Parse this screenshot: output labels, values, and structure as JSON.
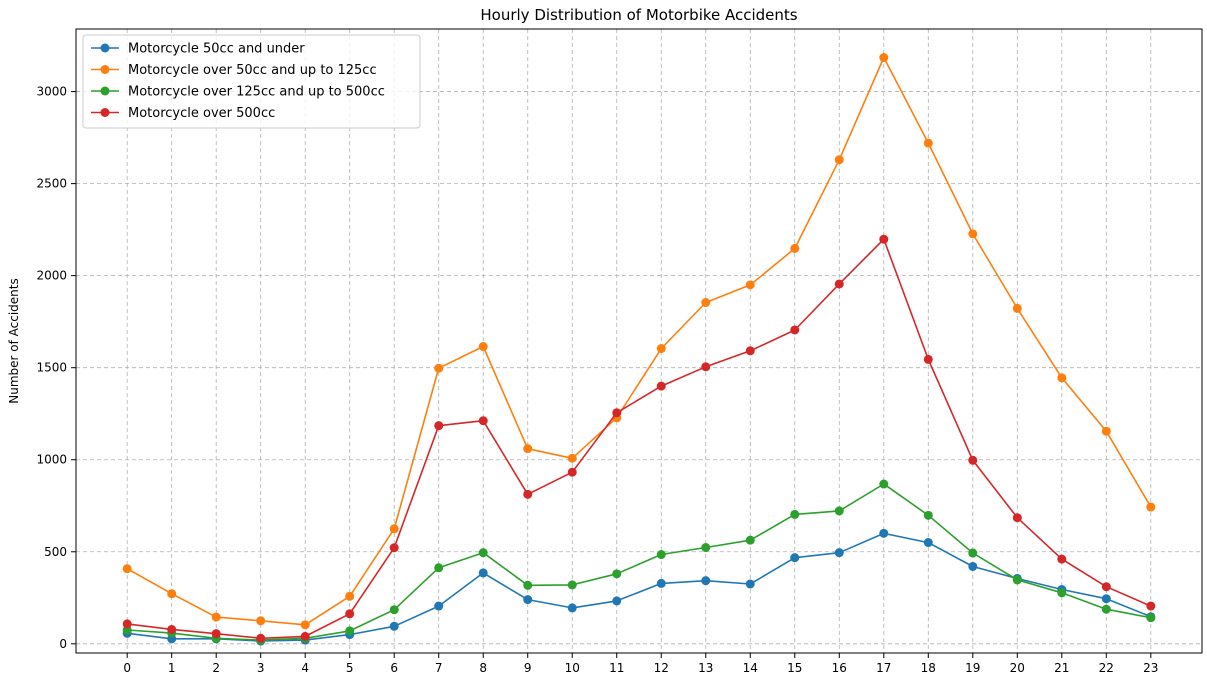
{
  "chart_data": {
    "type": "line",
    "title": "Hourly Distribution of Motorbike Accidents",
    "xlabel": "",
    "ylabel": "Number of Accidents",
    "x": [
      0,
      1,
      2,
      3,
      4,
      5,
      6,
      7,
      8,
      9,
      10,
      11,
      12,
      13,
      14,
      15,
      16,
      17,
      18,
      19,
      20,
      21,
      22,
      23
    ],
    "x_tick_labels": [
      "0",
      "1",
      "2",
      "3",
      "4",
      "5",
      "6",
      "7",
      "8",
      "9",
      "10",
      "11",
      "12",
      "13",
      "14",
      "15",
      "16",
      "17",
      "18",
      "19",
      "20",
      "21",
      "22",
      "23"
    ],
    "y_ticks": [
      0,
      500,
      1000,
      1500,
      2000,
      2500,
      3000
    ],
    "y_tick_labels": [
      "0",
      "500",
      "1000",
      "1500",
      "2000",
      "2500",
      "3000"
    ],
    "xlim": [
      -1.15,
      24.15
    ],
    "ylim": [
      -50,
      3340
    ],
    "grid": true,
    "grid_style": "dashed",
    "legend_position": "top-left",
    "series": [
      {
        "name": "Motorcycle 50cc and under",
        "color": "#1f77b4",
        "values": [
          57,
          27,
          27,
          15,
          20,
          50,
          95,
          205,
          385,
          240,
          195,
          233,
          328,
          343,
          325,
          468,
          495,
          600,
          550,
          420,
          355,
          295,
          245,
          147
        ]
      },
      {
        "name": "Motorcycle over 50cc and up to 125cc",
        "color": "#ff7f0e",
        "values": [
          408,
          272,
          145,
          125,
          103,
          258,
          625,
          1497,
          1615,
          1060,
          1008,
          1228,
          1604,
          1854,
          1950,
          2148,
          2630,
          3185,
          2720,
          2227,
          1822,
          1445,
          1155,
          743
        ]
      },
      {
        "name": "Motorcycle over 125cc and up to 500cc",
        "color": "#2ca02c",
        "values": [
          75,
          58,
          30,
          20,
          30,
          70,
          185,
          413,
          495,
          318,
          320,
          380,
          485,
          523,
          563,
          703,
          722,
          868,
          698,
          493,
          347,
          277,
          188,
          142
        ]
      },
      {
        "name": "Motorcycle over 500cc",
        "color": "#d62728",
        "values": [
          108,
          78,
          55,
          30,
          40,
          163,
          522,
          1185,
          1212,
          812,
          932,
          1255,
          1400,
          1505,
          1592,
          1705,
          1955,
          2198,
          1545,
          997,
          685,
          460,
          310,
          205
        ]
      }
    ]
  }
}
